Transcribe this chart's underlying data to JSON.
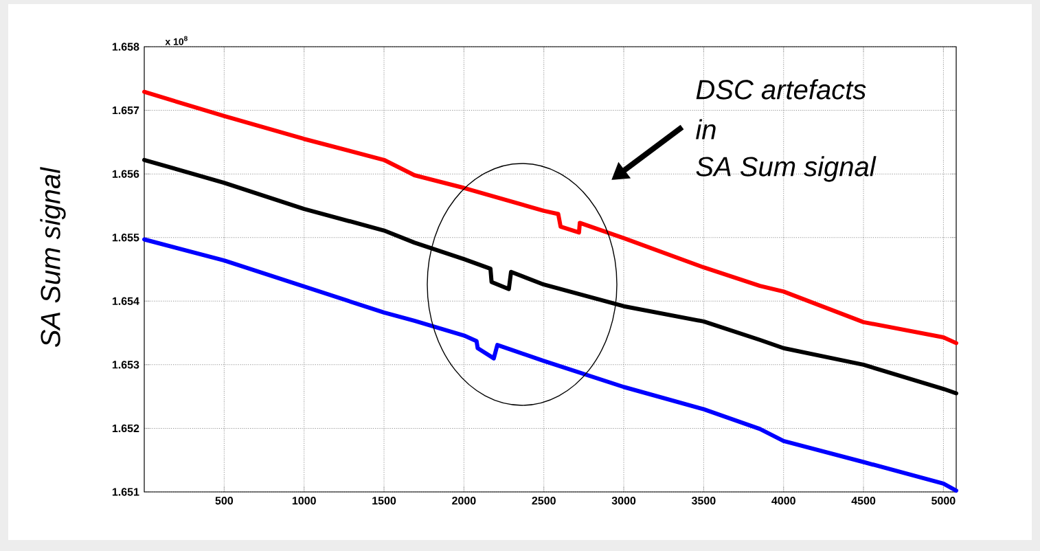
{
  "chart_data": {
    "type": "line",
    "ylabel": "SA Sum signal",
    "annotations": [
      "x 10$^{8}$",
      "DSC artefacts",
      "in",
      "SA Sum signal"
    ],
    "series": [
      {
        "color": "#ff0000",
        "x": [
          0,
          500,
          1000,
          1500,
          1690,
          2000,
          2500,
          2590,
          2605,
          2720,
          2725,
          3000,
          3500,
          3852,
          4000,
          4500,
          5000,
          5080
        ],
        "values": [
          1.65729,
          1.65691,
          1.65655,
          1.65622,
          1.65598,
          1.65578,
          1.65542,
          1.65537,
          1.65517,
          1.65508,
          1.65523,
          1.65499,
          1.65453,
          1.65424,
          1.65415,
          1.65367,
          1.65343,
          1.65334
        ]
      },
      {
        "color": "#000000",
        "x": [
          0,
          500,
          1000,
          1500,
          1690,
          2000,
          2166,
          2173,
          2281,
          2295,
          2500,
          3000,
          3500,
          3852,
          4000,
          4500,
          5000,
          5080
        ],
        "values": [
          1.65622,
          1.65586,
          1.65545,
          1.65511,
          1.65492,
          1.65466,
          1.65451,
          1.6543,
          1.65419,
          1.65446,
          1.65426,
          1.65392,
          1.65368,
          1.65339,
          1.65326,
          1.653,
          1.65262,
          1.65255
        ]
      },
      {
        "color": "#0000ff",
        "x": [
          0,
          500,
          1000,
          1500,
          1690,
          2000,
          2079,
          2086,
          2187,
          2209,
          2500,
          3000,
          3500,
          3852,
          4000,
          4500,
          5000,
          5080
        ],
        "values": [
          1.65497,
          1.65464,
          1.65423,
          1.65382,
          1.65369,
          1.65346,
          1.65337,
          1.65326,
          1.6531,
          1.65331,
          1.65306,
          1.65265,
          1.6523,
          1.65199,
          1.6518,
          1.65147,
          1.65113,
          1.65102
        ]
      }
    ],
    "xlim": [
      0,
      5080
    ],
    "xticks": [
      500,
      1000,
      1500,
      2000,
      2500,
      3000,
      3500,
      4000,
      4500,
      5000
    ],
    "ylim": [
      1.651,
      1.658
    ],
    "yticks": [
      1.651,
      1.652,
      1.653,
      1.654,
      1.655,
      1.656,
      1.657,
      1.658
    ],
    "grid": true,
    "marker": "none",
    "line_style": "solid"
  }
}
